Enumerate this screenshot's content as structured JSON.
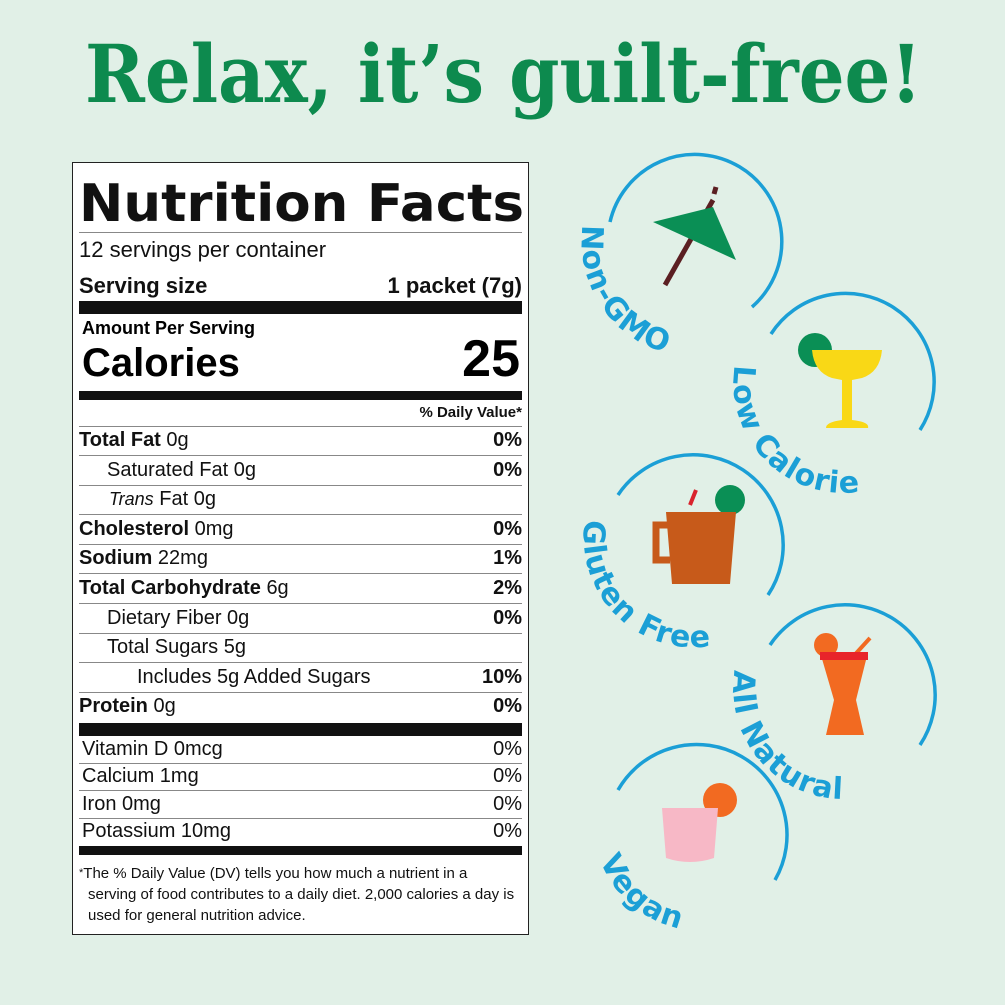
{
  "headline": "Relax, it’s guilt-free!",
  "colors": {
    "headline": "#0d8a4e",
    "badge_blue": "#1b9fd6",
    "background": "#e1f0e7"
  },
  "label": {
    "title": "Nutrition Facts",
    "servings": "12 servings per container",
    "serving_size_label": "Serving size",
    "serving_size_value": "1 packet (7g)",
    "amount_per_serving": "Amount Per Serving",
    "calories_label": "Calories",
    "calories_value": "25",
    "dv_header": "% Daily Value*",
    "nutrients": [
      {
        "name": "Total Fat",
        "amount": "0g",
        "dv": "0%"
      },
      {
        "name": "Saturated Fat",
        "amount": "0g",
        "dv": "0%"
      },
      {
        "name": "Trans",
        "amount": "Fat 0g",
        "dv": ""
      },
      {
        "name": "Cholesterol",
        "amount": "0mg",
        "dv": "0%"
      },
      {
        "name": "Sodium",
        "amount": "22mg",
        "dv": "1%"
      },
      {
        "name": "Total Carbohydrate",
        "amount": "6g",
        "dv": "2%"
      },
      {
        "name": "Dietary Fiber",
        "amount": "0g",
        "dv": "0%"
      },
      {
        "name": "Total Sugars",
        "amount": "5g",
        "dv": ""
      },
      {
        "name": "Includes 5g Added Sugars",
        "amount": "",
        "dv": "10%"
      },
      {
        "name": "Protein",
        "amount": "0g",
        "dv": "0%"
      }
    ],
    "vitamins": [
      {
        "name": "Vitamin D 0mcg",
        "dv": "0%"
      },
      {
        "name": "Calcium 1mg",
        "dv": "0%"
      },
      {
        "name": "Iron 0mg",
        "dv": "0%"
      },
      {
        "name": "Potassium 10mg",
        "dv": "0%"
      }
    ],
    "footnote_star": "*",
    "footnote": "The % Daily Value (DV) tells you how much a nutrient in a serving of food contributes to a daily diet. 2,000 calories a day is used for general nutrition advice."
  },
  "badges": [
    {
      "label": "Non-GMO",
      "icon": "cocktail-umbrella-icon"
    },
    {
      "label": "Low Calorie",
      "icon": "margarita-glass-icon"
    },
    {
      "label": "Gluten Free",
      "icon": "copper-mug-icon"
    },
    {
      "label": "All Natural",
      "icon": "hurricane-cocktail-icon"
    },
    {
      "label": "Vegan",
      "icon": "pink-cocktail-icon"
    }
  ]
}
